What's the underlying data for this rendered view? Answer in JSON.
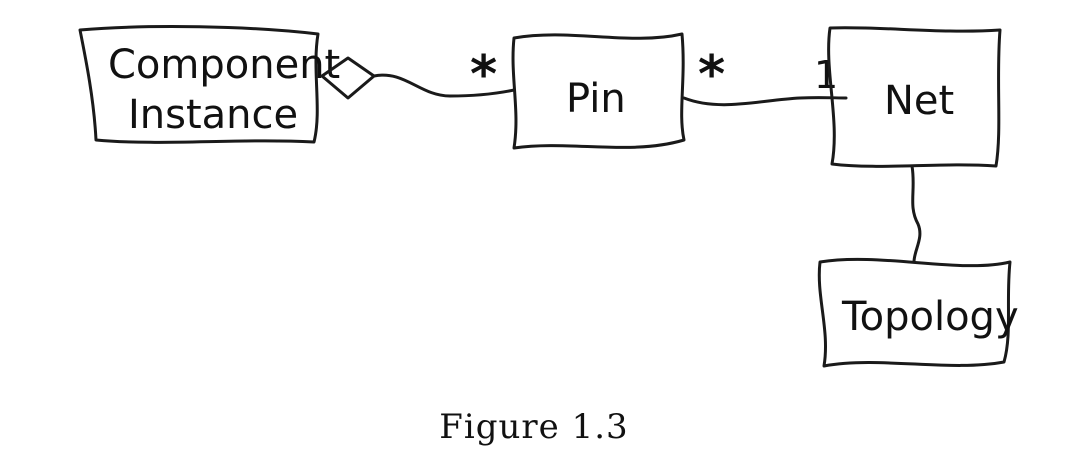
{
  "diagram": {
    "nodes": {
      "component_instance": {
        "line1": "Component",
        "line2": "Instance"
      },
      "pin": {
        "label": "Pin"
      },
      "net": {
        "label": "Net"
      },
      "topology": {
        "label": "Topology"
      }
    },
    "multiplicities": {
      "pin_side_of_component_link": "*",
      "pin_side_of_net_link": "*",
      "net_side_of_pin_link": "1"
    },
    "edges": [
      {
        "from": "component_instance",
        "to": "pin",
        "type": "aggregation"
      },
      {
        "from": "pin",
        "to": "net",
        "type": "association"
      },
      {
        "from": "net",
        "to": "topology",
        "type": "association"
      }
    ]
  },
  "caption": "Figure 1.3"
}
